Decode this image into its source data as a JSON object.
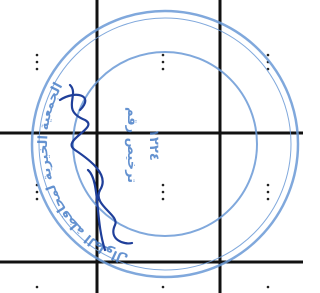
{
  "stamp": {
    "outer_text": "الجمعية الخيرية لمحافظة الطوال",
    "license_label": "ترخيص رقم",
    "license_number": "١٢٢٤"
  }
}
